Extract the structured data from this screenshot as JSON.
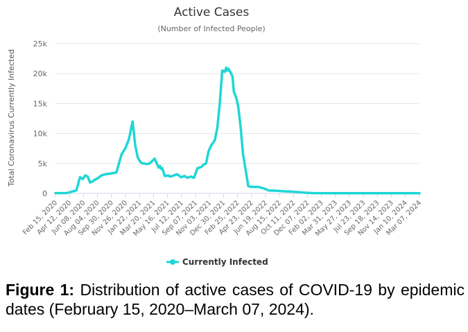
{
  "chart_data": {
    "type": "line",
    "title": "Active Cases",
    "subtitle": "(Number of Infected People)",
    "ylabel": "Total Coronavirus Currently Infected",
    "ylim": [
      0,
      25000
    ],
    "y_ticks": [
      "0",
      "5k",
      "10k",
      "15k",
      "20k",
      "25k"
    ],
    "x_tick_labels": [
      "Feb 15, 2020",
      "Apr 12, 2020",
      "Jun 08, 2020",
      "Aug 04, 2020",
      "Sep 30, 2020",
      "Nov 26, 2020",
      "Jan 22, 2021",
      "Mar 20, 2021",
      "May 16, 2021",
      "Jul 12, 2021",
      "Sep 07, 2021",
      "Nov 03, 2021",
      "Dec 30, 2021",
      "Feb 25, 2022",
      "Apr 23, 2022",
      "Jun 19, 2022",
      "Aug 15, 2022",
      "Oct 11, 2022",
      "Dec 07, 2022",
      "Feb 02, 2023",
      "Mar 31, 2023",
      "May 27, 2023",
      "Jul 23, 2023",
      "Sep 18, 2023",
      "Nov 14, 2023",
      "Jan 10, 2024",
      "Mar 07, 2024"
    ],
    "grid": true,
    "legend_position": "bottom-center",
    "series": [
      {
        "name": "Currently Infected",
        "color": "#1fd6d6",
        "x": [
          "2020-02-15",
          "2020-04-01",
          "2020-05-10",
          "2020-05-25",
          "2020-06-05",
          "2020-06-15",
          "2020-06-25",
          "2020-07-05",
          "2020-07-15",
          "2020-07-25",
          "2020-08-05",
          "2020-08-20",
          "2020-09-05",
          "2020-09-25",
          "2020-10-20",
          "2020-11-10",
          "2020-11-25",
          "2020-12-10",
          "2020-12-25",
          "2021-01-05",
          "2021-01-15",
          "2021-01-25",
          "2021-01-30",
          "2021-02-03",
          "2021-02-10",
          "2021-02-20",
          "2021-03-05",
          "2021-03-25",
          "2021-04-10",
          "2021-04-15",
          "2021-04-20",
          "2021-04-25",
          "2021-05-05",
          "2021-05-20",
          "2021-05-25",
          "2021-06-05",
          "2021-06-25",
          "2021-07-10",
          "2021-07-25",
          "2021-08-05",
          "2021-08-20",
          "2021-09-01",
          "2021-09-15",
          "2021-10-01",
          "2021-10-10",
          "2021-10-20",
          "2021-10-30",
          "2021-11-10",
          "2021-11-25",
          "2021-12-05",
          "2021-12-15",
          "2021-12-25",
          "2022-01-05",
          "2022-01-10",
          "2022-01-15",
          "2022-01-20",
          "2022-01-28",
          "2022-02-05",
          "2022-02-10",
          "2022-02-20",
          "2022-02-28",
          "2022-03-10",
          "2022-03-20",
          "2022-04-01",
          "2022-04-10",
          "2022-04-20",
          "2022-05-01",
          "2022-05-10",
          "2022-05-20",
          "2022-05-28",
          "2022-06-05",
          "2022-06-12",
          "2022-06-20",
          "2022-07-01",
          "2022-08-01",
          "2022-09-01",
          "2022-10-01",
          "2022-11-01",
          "2022-12-01",
          "2023-01-01",
          "2023-03-01",
          "2023-05-01",
          "2023-07-01",
          "2023-09-01",
          "2023-11-01",
          "2024-01-01",
          "2024-03-07"
        ],
        "y": [
          50,
          60,
          500,
          2700,
          2400,
          3000,
          2800,
          1800,
          2000,
          2300,
          2500,
          3000,
          3200,
          3300,
          3500,
          6500,
          7500,
          9000,
          12000,
          8000,
          6000,
          5300,
          5100,
          5000,
          5000,
          4900,
          5000,
          5800,
          4300,
          4600,
          4100,
          4200,
          2900,
          3000,
          2800,
          2900,
          3200,
          2700,
          2900,
          2600,
          2800,
          2600,
          4200,
          4400,
          4800,
          5000,
          7000,
          8000,
          8900,
          11000,
          15000,
          20500,
          20300,
          21000,
          20500,
          20800,
          20200,
          19500,
          17000,
          16000,
          14500,
          11000,
          6500,
          3500,
          1200,
          1100,
          1100,
          1050,
          1100,
          1000,
          900,
          850,
          700,
          500,
          450,
          350,
          300,
          200,
          100,
          50,
          30,
          20,
          20,
          20,
          20,
          20,
          20
        ]
      }
    ]
  },
  "caption": {
    "label": "Figure 1:",
    "text": " Distribution of active cases of COVID-19 by epidemic dates (February 15, 2020–March 07, 2024)."
  }
}
